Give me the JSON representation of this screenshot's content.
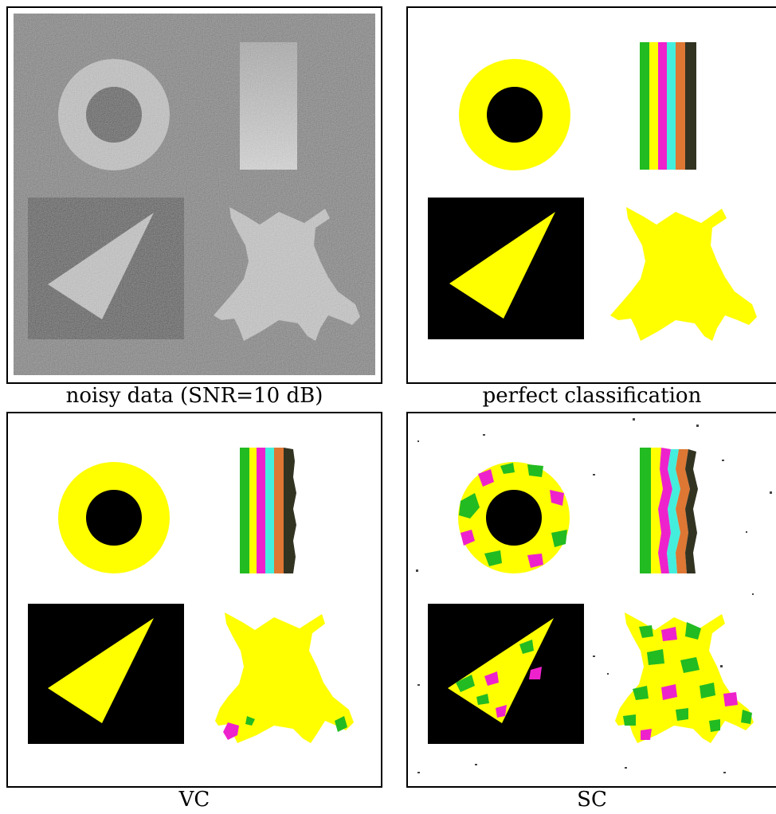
{
  "figure": {
    "panels": [
      {
        "caption": "noisy data (SNR=10 dB)"
      },
      {
        "caption": "perfect classification"
      },
      {
        "caption": "VC"
      },
      {
        "caption": "SC"
      }
    ],
    "colors": {
      "yellow": "#ffff00",
      "green": "#22bb22",
      "magenta": "#ee22cc",
      "cyan": "#44eedd",
      "orange": "#dd7733",
      "dark": "#333322",
      "black": "#000000",
      "noise_bg": "#7a7a7a"
    }
  }
}
